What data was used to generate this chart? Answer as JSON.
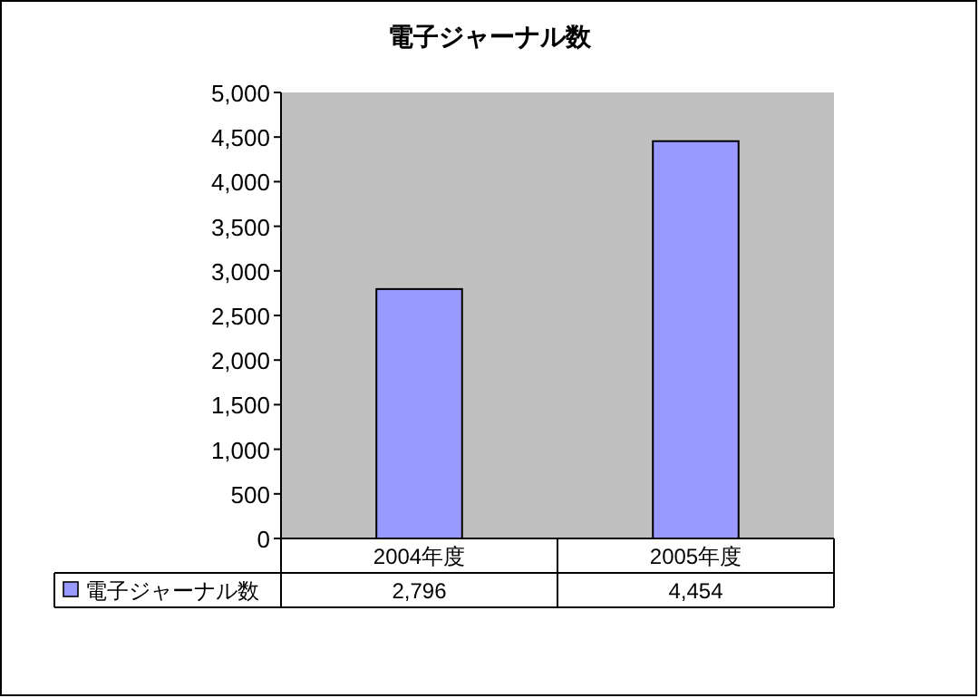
{
  "chart_data": {
    "type": "bar",
    "title": "電子ジャーナル数",
    "categories": [
      "2004年度",
      "2005年度"
    ],
    "series": [
      {
        "name": "電子ジャーナル数",
        "color": "#9999ff",
        "values": [
          2796,
          4454
        ],
        "value_labels": [
          "2,796",
          "4,454"
        ]
      }
    ],
    "ylim": [
      0,
      5000
    ],
    "yticks": [
      0,
      500,
      {
        "value": 1000,
        "label": "1,000"
      },
      {
        "value": 1500,
        "label": "1,500"
      },
      {
        "value": 2000,
        "label": "2,000"
      },
      {
        "value": 2500,
        "label": "2,500"
      },
      {
        "value": 3000,
        "label": "3,000"
      },
      {
        "value": 3500,
        "label": "3,500"
      },
      {
        "value": 4000,
        "label": "4,000"
      },
      {
        "value": 4500,
        "label": "4,500"
      },
      {
        "value": 5000,
        "label": "5,000"
      }
    ],
    "grid": false,
    "legend": "bottom"
  }
}
